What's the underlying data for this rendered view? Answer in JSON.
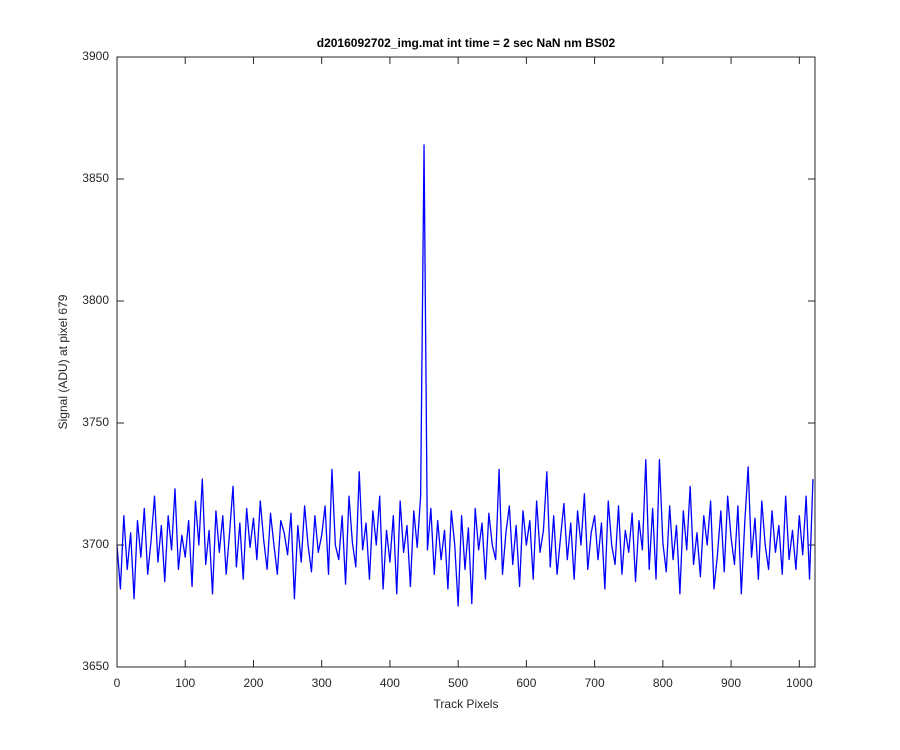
{
  "chart_data": {
    "type": "line",
    "title": "d2016092702_img.mat int time = 2 sec  NaN nm BS02",
    "x_label": "Track Pixels",
    "y_label": "Signal (ADU) at pixel 679",
    "xlim": [
      0,
      1023
    ],
    "ylim": [
      3650,
      3900
    ],
    "xticks": [
      0,
      100,
      200,
      300,
      400,
      500,
      600,
      700,
      800,
      900,
      1000
    ],
    "yticks": [
      3650,
      3700,
      3750,
      3800,
      3850,
      3900
    ],
    "x": [
      0,
      5,
      10,
      15,
      20,
      25,
      30,
      35,
      40,
      45,
      50,
      55,
      60,
      65,
      70,
      75,
      80,
      85,
      90,
      95,
      100,
      105,
      110,
      115,
      120,
      125,
      130,
      135,
      140,
      145,
      150,
      155,
      160,
      165,
      170,
      175,
      180,
      185,
      190,
      195,
      200,
      205,
      210,
      215,
      220,
      225,
      230,
      235,
      240,
      245,
      250,
      255,
      260,
      265,
      270,
      275,
      280,
      285,
      290,
      295,
      300,
      305,
      310,
      315,
      320,
      325,
      330,
      335,
      340,
      345,
      350,
      355,
      360,
      365,
      370,
      375,
      380,
      385,
      390,
      395,
      400,
      405,
      410,
      415,
      420,
      425,
      430,
      435,
      440,
      445,
      450,
      455,
      460,
      465,
      470,
      475,
      480,
      485,
      490,
      495,
      500,
      505,
      510,
      515,
      520,
      525,
      530,
      535,
      540,
      545,
      550,
      555,
      560,
      565,
      570,
      575,
      580,
      585,
      590,
      595,
      600,
      605,
      610,
      615,
      620,
      625,
      630,
      635,
      640,
      645,
      650,
      655,
      660,
      665,
      670,
      675,
      680,
      685,
      690,
      695,
      700,
      705,
      710,
      715,
      720,
      725,
      730,
      735,
      740,
      745,
      750,
      755,
      760,
      765,
      770,
      775,
      780,
      785,
      790,
      795,
      800,
      805,
      810,
      815,
      820,
      825,
      830,
      835,
      840,
      845,
      850,
      855,
      860,
      865,
      870,
      875,
      880,
      885,
      890,
      895,
      900,
      905,
      910,
      915,
      920,
      925,
      930,
      935,
      940,
      945,
      950,
      955,
      960,
      965,
      970,
      975,
      980,
      985,
      990,
      995,
      1000,
      1005,
      1010,
      1015,
      1020
    ],
    "series": [
      {
        "color": "#0000ff",
        "values": [
          3700,
          3682,
          3712,
          3690,
          3705,
          3678,
          3710,
          3695,
          3715,
          3688,
          3702,
          3720,
          3693,
          3708,
          3685,
          3712,
          3698,
          3723,
          3690,
          3704,
          3695,
          3710,
          3683,
          3718,
          3700,
          3727,
          3692,
          3706,
          3680,
          3714,
          3697,
          3712,
          3688,
          3705,
          3724,
          3691,
          3709,
          3686,
          3715,
          3699,
          3711,
          3694,
          3718,
          3702,
          3690,
          3713,
          3700,
          3688,
          3710,
          3705,
          3696,
          3713,
          3678,
          3708,
          3693,
          3716,
          3700,
          3689,
          3712,
          3697,
          3704,
          3716,
          3688,
          3731,
          3700,
          3694,
          3712,
          3684,
          3720,
          3701,
          3691,
          3730,
          3698,
          3709,
          3686,
          3714,
          3700,
          3720,
          3682,
          3706,
          3693,
          3712,
          3680,
          3718,
          3697,
          3708,
          3683,
          3714,
          3699,
          3720,
          3864,
          3698,
          3715,
          3688,
          3710,
          3694,
          3706,
          3682,
          3714,
          3700,
          3675,
          3712,
          3690,
          3707,
          3676,
          3715,
          3698,
          3709,
          3686,
          3713,
          3700,
          3694,
          3731,
          3688,
          3705,
          3716,
          3692,
          3708,
          3683,
          3714,
          3700,
          3710,
          3686,
          3718,
          3697,
          3706,
          3730,
          3691,
          3712,
          3688,
          3703,
          3717,
          3694,
          3709,
          3686,
          3714,
          3700,
          3721,
          3690,
          3705,
          3712,
          3694,
          3709,
          3682,
          3718,
          3700,
          3692,
          3716,
          3688,
          3706,
          3697,
          3713,
          3685,
          3710,
          3698,
          3735,
          3690,
          3715,
          3686,
          3735,
          3701,
          3689,
          3716,
          3694,
          3708,
          3680,
          3714,
          3698,
          3724,
          3692,
          3705,
          3687,
          3712,
          3700,
          3718,
          3682,
          3696,
          3714,
          3689,
          3720,
          3703,
          3692,
          3716,
          3680,
          3709,
          3732,
          3695,
          3711,
          3686,
          3718,
          3700,
          3690,
          3714,
          3697,
          3708,
          3688,
          3720,
          3694,
          3706,
          3690,
          3712,
          3696,
          3720,
          3686,
          3727
        ]
      }
    ]
  }
}
